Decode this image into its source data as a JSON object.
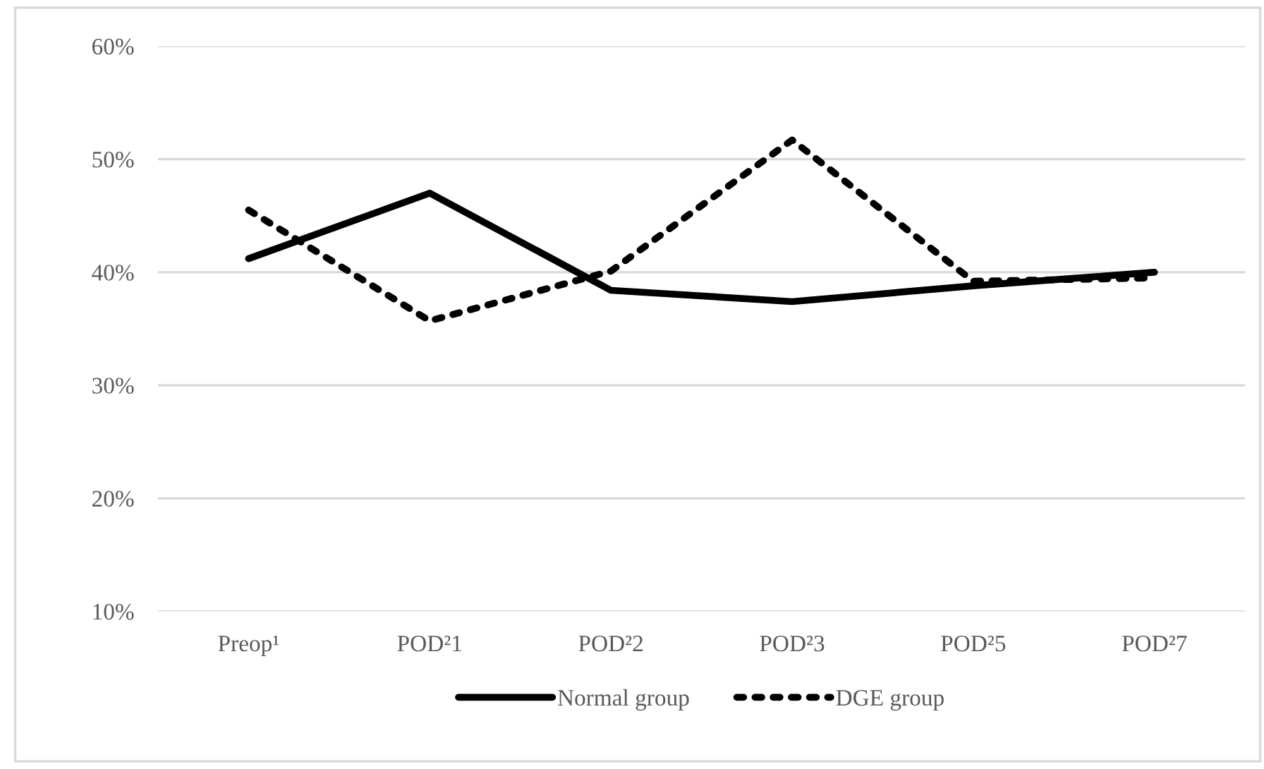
{
  "chart_data": {
    "type": "line",
    "categories": [
      "Preop¹",
      "POD²1",
      "POD²2",
      "POD²3",
      "POD²5",
      "POD²7"
    ],
    "series": [
      {
        "name": "Normal group",
        "color": "#000000",
        "line_style": "solid",
        "values": [
          41.2,
          47.0,
          38.4,
          37.4,
          38.8,
          40.0
        ]
      },
      {
        "name": "DGE group",
        "color": "#000000",
        "line_style": "dotted",
        "values": [
          45.5,
          35.7,
          40.1,
          51.7,
          39.2,
          39.5
        ]
      }
    ],
    "ylim": [
      10,
      60
    ],
    "yticks": [
      {
        "value": 10,
        "label": "10%"
      },
      {
        "value": 20,
        "label": "20%"
      },
      {
        "value": 30,
        "label": "30%"
      },
      {
        "value": 40,
        "label": "40%"
      },
      {
        "value": 50,
        "label": "50%"
      },
      {
        "value": 60,
        "label": "60%"
      }
    ],
    "grid": "y",
    "legend": "bottom",
    "marker": "none"
  }
}
